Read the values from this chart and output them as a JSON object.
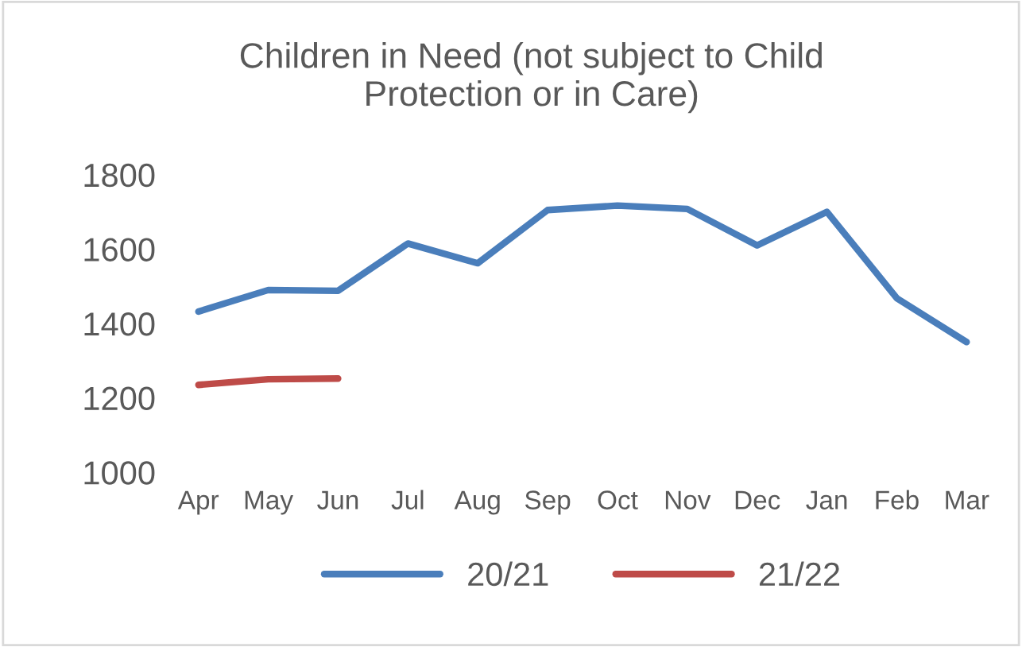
{
  "chart_data": {
    "type": "line",
    "title": "Children in Need (not subject to Child\nProtection or in Care)",
    "categories": [
      "Apr",
      "May",
      "Jun",
      "Jul",
      "Aug",
      "Sep",
      "Oct",
      "Nov",
      "Dec",
      "Jan",
      "Feb",
      "Mar"
    ],
    "series": [
      {
        "name": "20/21",
        "color": "#4a7ebb",
        "values": [
          1432,
          1490,
          1488,
          1615,
          1562,
          1705,
          1717,
          1708,
          1610,
          1700,
          1468,
          1350
        ]
      },
      {
        "name": "21/22",
        "color": "#be4b48",
        "values": [
          1235,
          1250,
          1252,
          null,
          null,
          null,
          null,
          null,
          null,
          null,
          null,
          null
        ]
      }
    ],
    "ylim": [
      1000,
      1800
    ],
    "yticks": [
      1000,
      1200,
      1400,
      1600,
      1800
    ],
    "grid": false,
    "legend": "bottom",
    "marker": "none",
    "line_style": "solid"
  }
}
